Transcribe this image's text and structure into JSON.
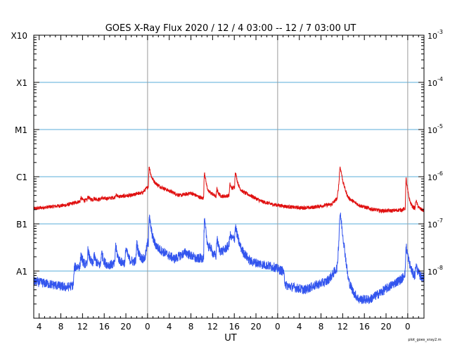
{
  "chart_data": {
    "type": "line",
    "title": "GOES X-Ray Flux   2020 / 12 /  4   03:00 -- 12 /  7   03:00   UT",
    "xlabel": "UT",
    "ylabel": "",
    "x_ticks": [
      "4",
      "8",
      "12",
      "16",
      "20",
      "0",
      "4",
      "8",
      "12",
      "16",
      "20",
      "0",
      "4",
      "8",
      "12",
      "16",
      "20",
      "0"
    ],
    "x_range_hours": [
      0,
      72
    ],
    "day_boundaries_hours": [
      21,
      45,
      69
    ],
    "ylim": [
      1e-09,
      0.001
    ],
    "y_scale": "log",
    "y_left_labels": [
      "A1",
      "B1",
      "C1",
      "M1",
      "X1",
      "X10"
    ],
    "y_right_labels": [
      "10^-8",
      "10^-7",
      "10^-6",
      "10^-5",
      "10^-4",
      "10^-3"
    ],
    "gridlines_at": [
      1e-08,
      1e-07,
      1e-06,
      1e-05,
      0.0001
    ],
    "grid": true,
    "legend": "none",
    "footer_note": "plot_goes_xray2.m",
    "series": [
      {
        "color": "#e01010",
        "baseline": [
          [
            0,
            2.1e-07
          ],
          [
            3,
            2.3e-07
          ],
          [
            6,
            2.5e-07
          ],
          [
            8.5,
            3e-07
          ],
          [
            10,
            3.2e-07
          ],
          [
            12,
            3.3e-07
          ],
          [
            14,
            3.5e-07
          ],
          [
            16,
            3.8e-07
          ],
          [
            18,
            4e-07
          ],
          [
            20,
            4.5e-07
          ],
          [
            21,
            6e-07
          ],
          [
            22,
            7.5e-07
          ],
          [
            23.5,
            6e-07
          ],
          [
            25,
            5e-07
          ],
          [
            27,
            4e-07
          ],
          [
            29,
            4.5e-07
          ],
          [
            31,
            3.5e-07
          ],
          [
            33,
            4e-07
          ],
          [
            34,
            3.6e-07
          ],
          [
            36,
            4e-07
          ],
          [
            37,
            6e-07
          ],
          [
            38,
            5e-07
          ],
          [
            40,
            4e-07
          ],
          [
            42,
            3e-07
          ],
          [
            44,
            2.6e-07
          ],
          [
            45,
            2.5e-07
          ],
          [
            47,
            2.3e-07
          ],
          [
            49,
            2.2e-07
          ],
          [
            51,
            2.2e-07
          ],
          [
            53,
            2.4e-07
          ],
          [
            55,
            2.6e-07
          ],
          [
            56,
            3.5e-07
          ],
          [
            56.5,
            1.2e-06
          ],
          [
            57,
            6e-07
          ],
          [
            58,
            3.5e-07
          ],
          [
            60,
            2.5e-07
          ],
          [
            62,
            2.1e-07
          ],
          [
            64,
            1.9e-07
          ],
          [
            66,
            1.9e-07
          ],
          [
            68,
            2e-07
          ],
          [
            69,
            2.2e-07
          ],
          [
            70,
            2.1e-07
          ],
          [
            72,
            1.9e-07
          ]
        ],
        "peaks": [
          [
            8.7,
            3.6e-07
          ],
          [
            10,
            3.8e-07
          ],
          [
            11.1,
            3.5e-07
          ],
          [
            12.5,
            3.6e-07
          ],
          [
            15.1,
            4.2e-07
          ],
          [
            17,
            4e-07
          ],
          [
            19,
            4.6e-07
          ],
          [
            21.3,
            1.7e-06
          ],
          [
            31.5,
            1.3e-06
          ],
          [
            32.5,
            4.8e-07
          ],
          [
            33.8,
            5.6e-07
          ],
          [
            36.2,
            7e-07
          ],
          [
            37.2,
            1.3e-06
          ],
          [
            56.5,
            1.6e-06
          ],
          [
            68.7,
            9e-07
          ],
          [
            70.5,
            3.2e-07
          ]
        ],
        "noise": 0.04
      },
      {
        "color": "#3355ee",
        "baseline": [
          [
            0,
            6e-09
          ],
          [
            2,
            5.5e-09
          ],
          [
            4,
            5e-09
          ],
          [
            6,
            4.5e-09
          ],
          [
            7.3,
            5e-09
          ],
          [
            7.5,
            1.2e-08
          ],
          [
            9,
            1.3e-08
          ],
          [
            11,
            1.3e-08
          ],
          [
            13,
            1.3e-08
          ],
          [
            15,
            1.4e-08
          ],
          [
            17,
            1.5e-08
          ],
          [
            19,
            1.6e-08
          ],
          [
            20.5,
            1.8e-08
          ],
          [
            21,
            4e-08
          ],
          [
            22,
            3.5e-08
          ],
          [
            24,
            2.5e-08
          ],
          [
            26,
            1.8e-08
          ],
          [
            28,
            2.5e-08
          ],
          [
            30,
            1.8e-08
          ],
          [
            32,
            2e-08
          ],
          [
            34,
            2e-08
          ],
          [
            36,
            3.5e-08
          ],
          [
            37,
            5e-08
          ],
          [
            38,
            3e-08
          ],
          [
            40,
            1.6e-08
          ],
          [
            42,
            1.4e-08
          ],
          [
            44.5,
            1.2e-08
          ],
          [
            45,
            1.1e-08
          ],
          [
            46,
            1e-08
          ],
          [
            46.5,
            5e-09
          ],
          [
            48,
            4.5e-09
          ],
          [
            50,
            4e-09
          ],
          [
            52,
            5e-09
          ],
          [
            54,
            6e-09
          ],
          [
            55,
            8e-09
          ],
          [
            56,
            1.2e-08
          ],
          [
            56.5,
            1.2e-07
          ],
          [
            57,
            3e-08
          ],
          [
            58,
            5e-09
          ],
          [
            60,
            2.5e-09
          ],
          [
            62,
            2.5e-09
          ],
          [
            64,
            3.5e-09
          ],
          [
            66,
            5e-09
          ],
          [
            68,
            7e-09
          ],
          [
            69,
            1.2e-08
          ],
          [
            70,
            8e-09
          ],
          [
            72,
            7e-09
          ]
        ],
        "peaks": [
          [
            8.7,
            2.2e-08
          ],
          [
            10,
            2.8e-08
          ],
          [
            11.1,
            2.2e-08
          ],
          [
            12.5,
            2.6e-08
          ],
          [
            15.1,
            3.5e-08
          ],
          [
            17,
            3.2e-08
          ],
          [
            19,
            4e-08
          ],
          [
            21.3,
            1.5e-07
          ],
          [
            31.5,
            1.2e-07
          ],
          [
            32.5,
            3.5e-08
          ],
          [
            33.8,
            5e-08
          ],
          [
            36.2,
            6e-08
          ],
          [
            37.2,
            9e-08
          ],
          [
            56.5,
            1.6e-07
          ],
          [
            68.7,
            3.5e-08
          ],
          [
            70.5,
            1.4e-08
          ]
        ],
        "noise": 0.1
      }
    ]
  }
}
